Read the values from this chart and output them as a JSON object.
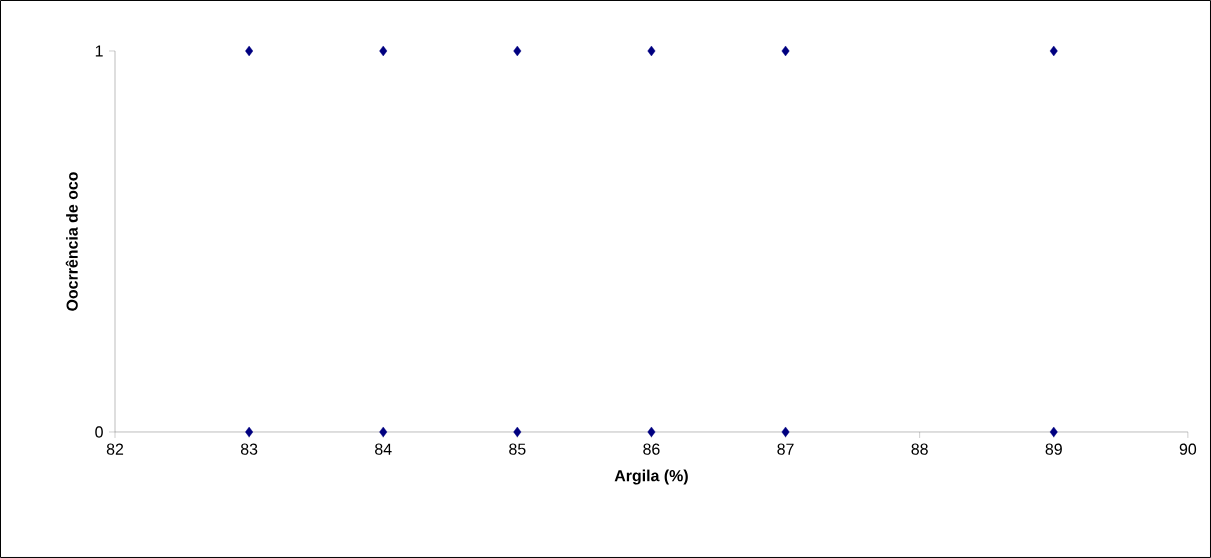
{
  "chart_data": {
    "type": "scatter",
    "xlabel": "Argila (%)",
    "ylabel": "Oocrrência de oco",
    "x": [
      83,
      84,
      85,
      86,
      87,
      89,
      83,
      84,
      85,
      86,
      87,
      89
    ],
    "values": [
      1,
      1,
      1,
      1,
      1,
      1,
      0,
      0,
      0,
      0,
      0,
      0
    ],
    "color": "#000080",
    "marker": "diamond",
    "xlim": [
      82,
      90
    ],
    "ylim": [
      0,
      1
    ],
    "xticks": [
      82,
      83,
      84,
      85,
      86,
      87,
      88,
      89,
      90
    ],
    "yticks": [
      0,
      1
    ]
  }
}
